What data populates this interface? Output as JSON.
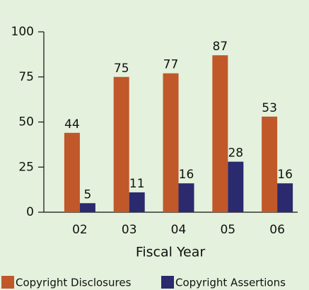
{
  "chart_data": {
    "type": "bar",
    "x_label": "Fiscal Year",
    "categories": [
      "02",
      "03",
      "04",
      "05",
      "06"
    ],
    "series": [
      {
        "name": "Copyright Disclosures",
        "color": "#c0582a",
        "values": [
          44,
          75,
          77,
          87,
          53
        ]
      },
      {
        "name": "Copyright Assertions",
        "color": "#2b2a6e",
        "values": [
          5,
          11,
          16,
          28,
          16
        ]
      }
    ],
    "ylim": [
      0,
      100
    ],
    "yticks": [
      0,
      25,
      50,
      75,
      100
    ],
    "data_labels": true,
    "legend": "bottom"
  }
}
